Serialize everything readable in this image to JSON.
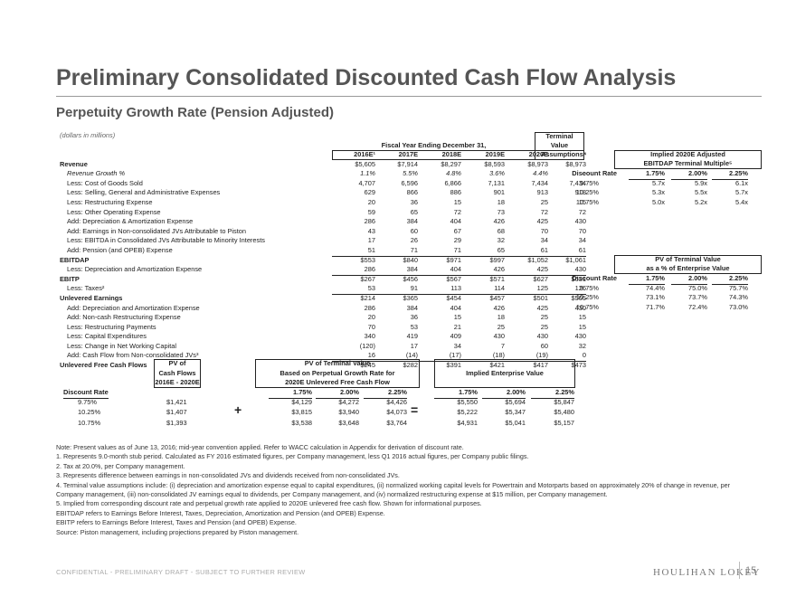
{
  "title": "Preliminary Consolidated Discounted Cash Flow Analysis",
  "subtitle": "Perpetuity Growth Rate (Pension Adjusted)",
  "units_note": "(dollars in millions)",
  "main": {
    "group_header": "Fiscal Year Ending December 31,",
    "tv_header_1": "Terminal",
    "tv_header_2": "Value",
    "columns": [
      "2016E¹",
      "2017E",
      "2018E",
      "2019E",
      "2020E",
      "Assumptions⁴"
    ],
    "rows": [
      {
        "label": "Revenue",
        "v": [
          "$5,605",
          "$7,914",
          "$8,297",
          "$8,593",
          "$8,973",
          "$8,973"
        ],
        "s": "bold"
      },
      {
        "label": "Revenue Growth %",
        "v": [
          "1.1%",
          "5.5%",
          "4.8%",
          "3.6%",
          "4.4%",
          "--"
        ],
        "s": "ital"
      },
      {
        "label": "Less: Cost of Goods Sold",
        "v": [
          "4,707",
          "6,596",
          "6,866",
          "7,131",
          "7,434",
          "7,434"
        ]
      },
      {
        "label": "Less: Selling, General and Administrative Expenses",
        "v": [
          "629",
          "866",
          "886",
          "901",
          "913",
          "918"
        ]
      },
      {
        "label": "Less: Restructuring Expense",
        "v": [
          "20",
          "36",
          "15",
          "18",
          "25",
          "15"
        ]
      },
      {
        "label": "Less: Other Operating Expense",
        "v": [
          "59",
          "65",
          "72",
          "73",
          "72",
          "72"
        ]
      },
      {
        "label": "Add: Depreciation & Amortization Expense",
        "v": [
          "286",
          "384",
          "404",
          "426",
          "425",
          "430"
        ]
      },
      {
        "label": "Add: Earnings in Non-consolidated JVs Attributable to Piston",
        "v": [
          "43",
          "60",
          "67",
          "68",
          "70",
          "70"
        ]
      },
      {
        "label": "Less: EBITDA in Consolidated JVs Attributable to Minority Interests",
        "v": [
          "17",
          "26",
          "29",
          "32",
          "34",
          "34"
        ]
      },
      {
        "label": "Add: Pension (and OPEB) Expense",
        "v": [
          "51",
          "71",
          "71",
          "65",
          "61",
          "61"
        ],
        "s": "ul"
      },
      {
        "label": "EBITDAP",
        "v": [
          "$553",
          "$840",
          "$971",
          "$997",
          "$1,052",
          "$1,061"
        ],
        "s": "bold"
      },
      {
        "label": "Less: Depreciation and Amortization Expense",
        "v": [
          "286",
          "384",
          "404",
          "426",
          "425",
          "430"
        ],
        "s": "ul"
      },
      {
        "label": "EBITP",
        "v": [
          "$267",
          "$456",
          "$567",
          "$571",
          "$627",
          "$631"
        ],
        "s": "bold"
      },
      {
        "label": "Less: Taxes²",
        "v": [
          "53",
          "91",
          "113",
          "114",
          "125",
          "126"
        ],
        "s": "ul"
      },
      {
        "label": "Unlevered Earnings",
        "v": [
          "$214",
          "$365",
          "$454",
          "$457",
          "$501",
          "$505"
        ],
        "s": "bold"
      },
      {
        "label": "Add: Depreciation and Amortization Expense",
        "v": [
          "286",
          "384",
          "404",
          "426",
          "425",
          "430"
        ]
      },
      {
        "label": "Add: Non-cash Restructuring Expense",
        "v": [
          "20",
          "36",
          "15",
          "18",
          "25",
          "15"
        ]
      },
      {
        "label": "Less: Restructuring Payments",
        "v": [
          "70",
          "53",
          "21",
          "25",
          "25",
          "15"
        ]
      },
      {
        "label": "Less: Capital Expenditures",
        "v": [
          "340",
          "419",
          "409",
          "430",
          "430",
          "430"
        ]
      },
      {
        "label": "Less: Change in Net Working Capital",
        "v": [
          "(120)",
          "17",
          "34",
          "7",
          "60",
          "32"
        ]
      },
      {
        "label": "Add: Cash Flow from Non-consolidated JVs³",
        "v": [
          "16",
          "(14)",
          "(17)",
          "(18)",
          "(19)",
          "0"
        ],
        "s": "ul"
      },
      {
        "label": "Unlevered Free Cash Flows",
        "v": [
          "$245",
          "$282",
          "$391",
          "$421",
          "$417",
          "$473"
        ],
        "s": "bold"
      }
    ]
  },
  "ebitdap_table": {
    "title_1": "Implied 2020E Adjusted",
    "title_2": "EBITDAP Terminal Multiple⁵",
    "rate_header": "Discount Rate",
    "growth": [
      "1.75%",
      "2.00%",
      "2.25%"
    ],
    "rows": [
      {
        "rate": "9.75%",
        "v": [
          "5.7x",
          "5.9x",
          "6.1x"
        ]
      },
      {
        "rate": "10.25%",
        "v": [
          "5.3x",
          "5.5x",
          "5.7x"
        ]
      },
      {
        "rate": "10.75%",
        "v": [
          "5.0x",
          "5.2x",
          "5.4x"
        ]
      }
    ]
  },
  "pv_pct_table": {
    "title_1": "PV of Terminal Value",
    "title_2": "as a % of Enterprise Value",
    "rate_header": "Discount Rate",
    "growth": [
      "1.75%",
      "2.00%",
      "2.25%"
    ],
    "rows": [
      {
        "rate": "9.75%",
        "v": [
          "74.4%",
          "75.0%",
          "75.7%"
        ]
      },
      {
        "rate": "10.25%",
        "v": [
          "73.1%",
          "73.7%",
          "74.3%"
        ]
      },
      {
        "rate": "10.75%",
        "v": [
          "71.7%",
          "72.4%",
          "73.0%"
        ]
      }
    ]
  },
  "bottom": {
    "pvcf_h": [
      "PV of",
      "Cash Flows",
      "2016E - 2020E"
    ],
    "pvtv_h": [
      "PV of Terminal Value",
      "Based on Perpetual Growth Rate for",
      "2020E Unlevered Free Cash Flow"
    ],
    "iev_h": "Implied Enterprise Value",
    "rate_header": "Discount Rate",
    "growth": [
      "1.75%",
      "2.00%",
      "2.25%"
    ],
    "plus": "+",
    "equals": "=",
    "rows": [
      {
        "rate": "9.75%",
        "pv": "$1,421",
        "tv": [
          "$4,129",
          "$4,272",
          "$4,426"
        ],
        "ev": [
          "$5,550",
          "$5,694",
          "$5,847"
        ]
      },
      {
        "rate": "10.25%",
        "pv": "$1,407",
        "tv": [
          "$3,815",
          "$3,940",
          "$4,073"
        ],
        "ev": [
          "$5,222",
          "$5,347",
          "$5,480"
        ]
      },
      {
        "rate": "10.75%",
        "pv": "$1,393",
        "tv": [
          "$3,538",
          "$3,648",
          "$3,764"
        ],
        "ev": [
          "$4,931",
          "$5,041",
          "$5,157"
        ]
      }
    ]
  },
  "notes": [
    "Note: Present values as of June 13, 2016; mid-year convention applied. Refer to WACC calculation in Appendix for derivation of discount rate.",
    "1. Represents 9.0-month stub period. Calculated as FY 2016 estimated figures, per Company management, less Q1 2016 actual figures, per Company public filings.",
    "2. Tax at 20.0%, per Company management.",
    "3. Represents difference between earnings in non-consolidated JVs and dividends received from non-consolidated JVs.",
    "4. Terminal value assumptions include: (i) depreciation and amortization expense equal to capital expenditures, (ii) normalized working capital levels for Powertrain and Motorparts based on approximately 20% of change in revenue, per Company management, (iii) non-consolidated JV earnings equal to dividends, per Company management, and (iv) normalized restructuring expense at $15 million, per Company management.",
    "5. Implied from corresponding discount rate and perpetual growth rate applied to 2020E unlevered free cash flow. Shown for informational purposes.",
    "EBITDAP refers to Earnings Before Interest, Taxes, Depreciation, Amortization and Pension (and OPEB) Expense.",
    "EBITP refers to Earnings Before Interest, Taxes and Pension (and OPEB) Expense.",
    "Source: Piston management, including projections prepared by Piston management."
  ],
  "footer": "CONFIDENTIAL - PRELIMINARY DRAFT - SUBJECT TO FURTHER REVIEW",
  "brand": "HOULIHAN LOKEY",
  "page_number": "15"
}
